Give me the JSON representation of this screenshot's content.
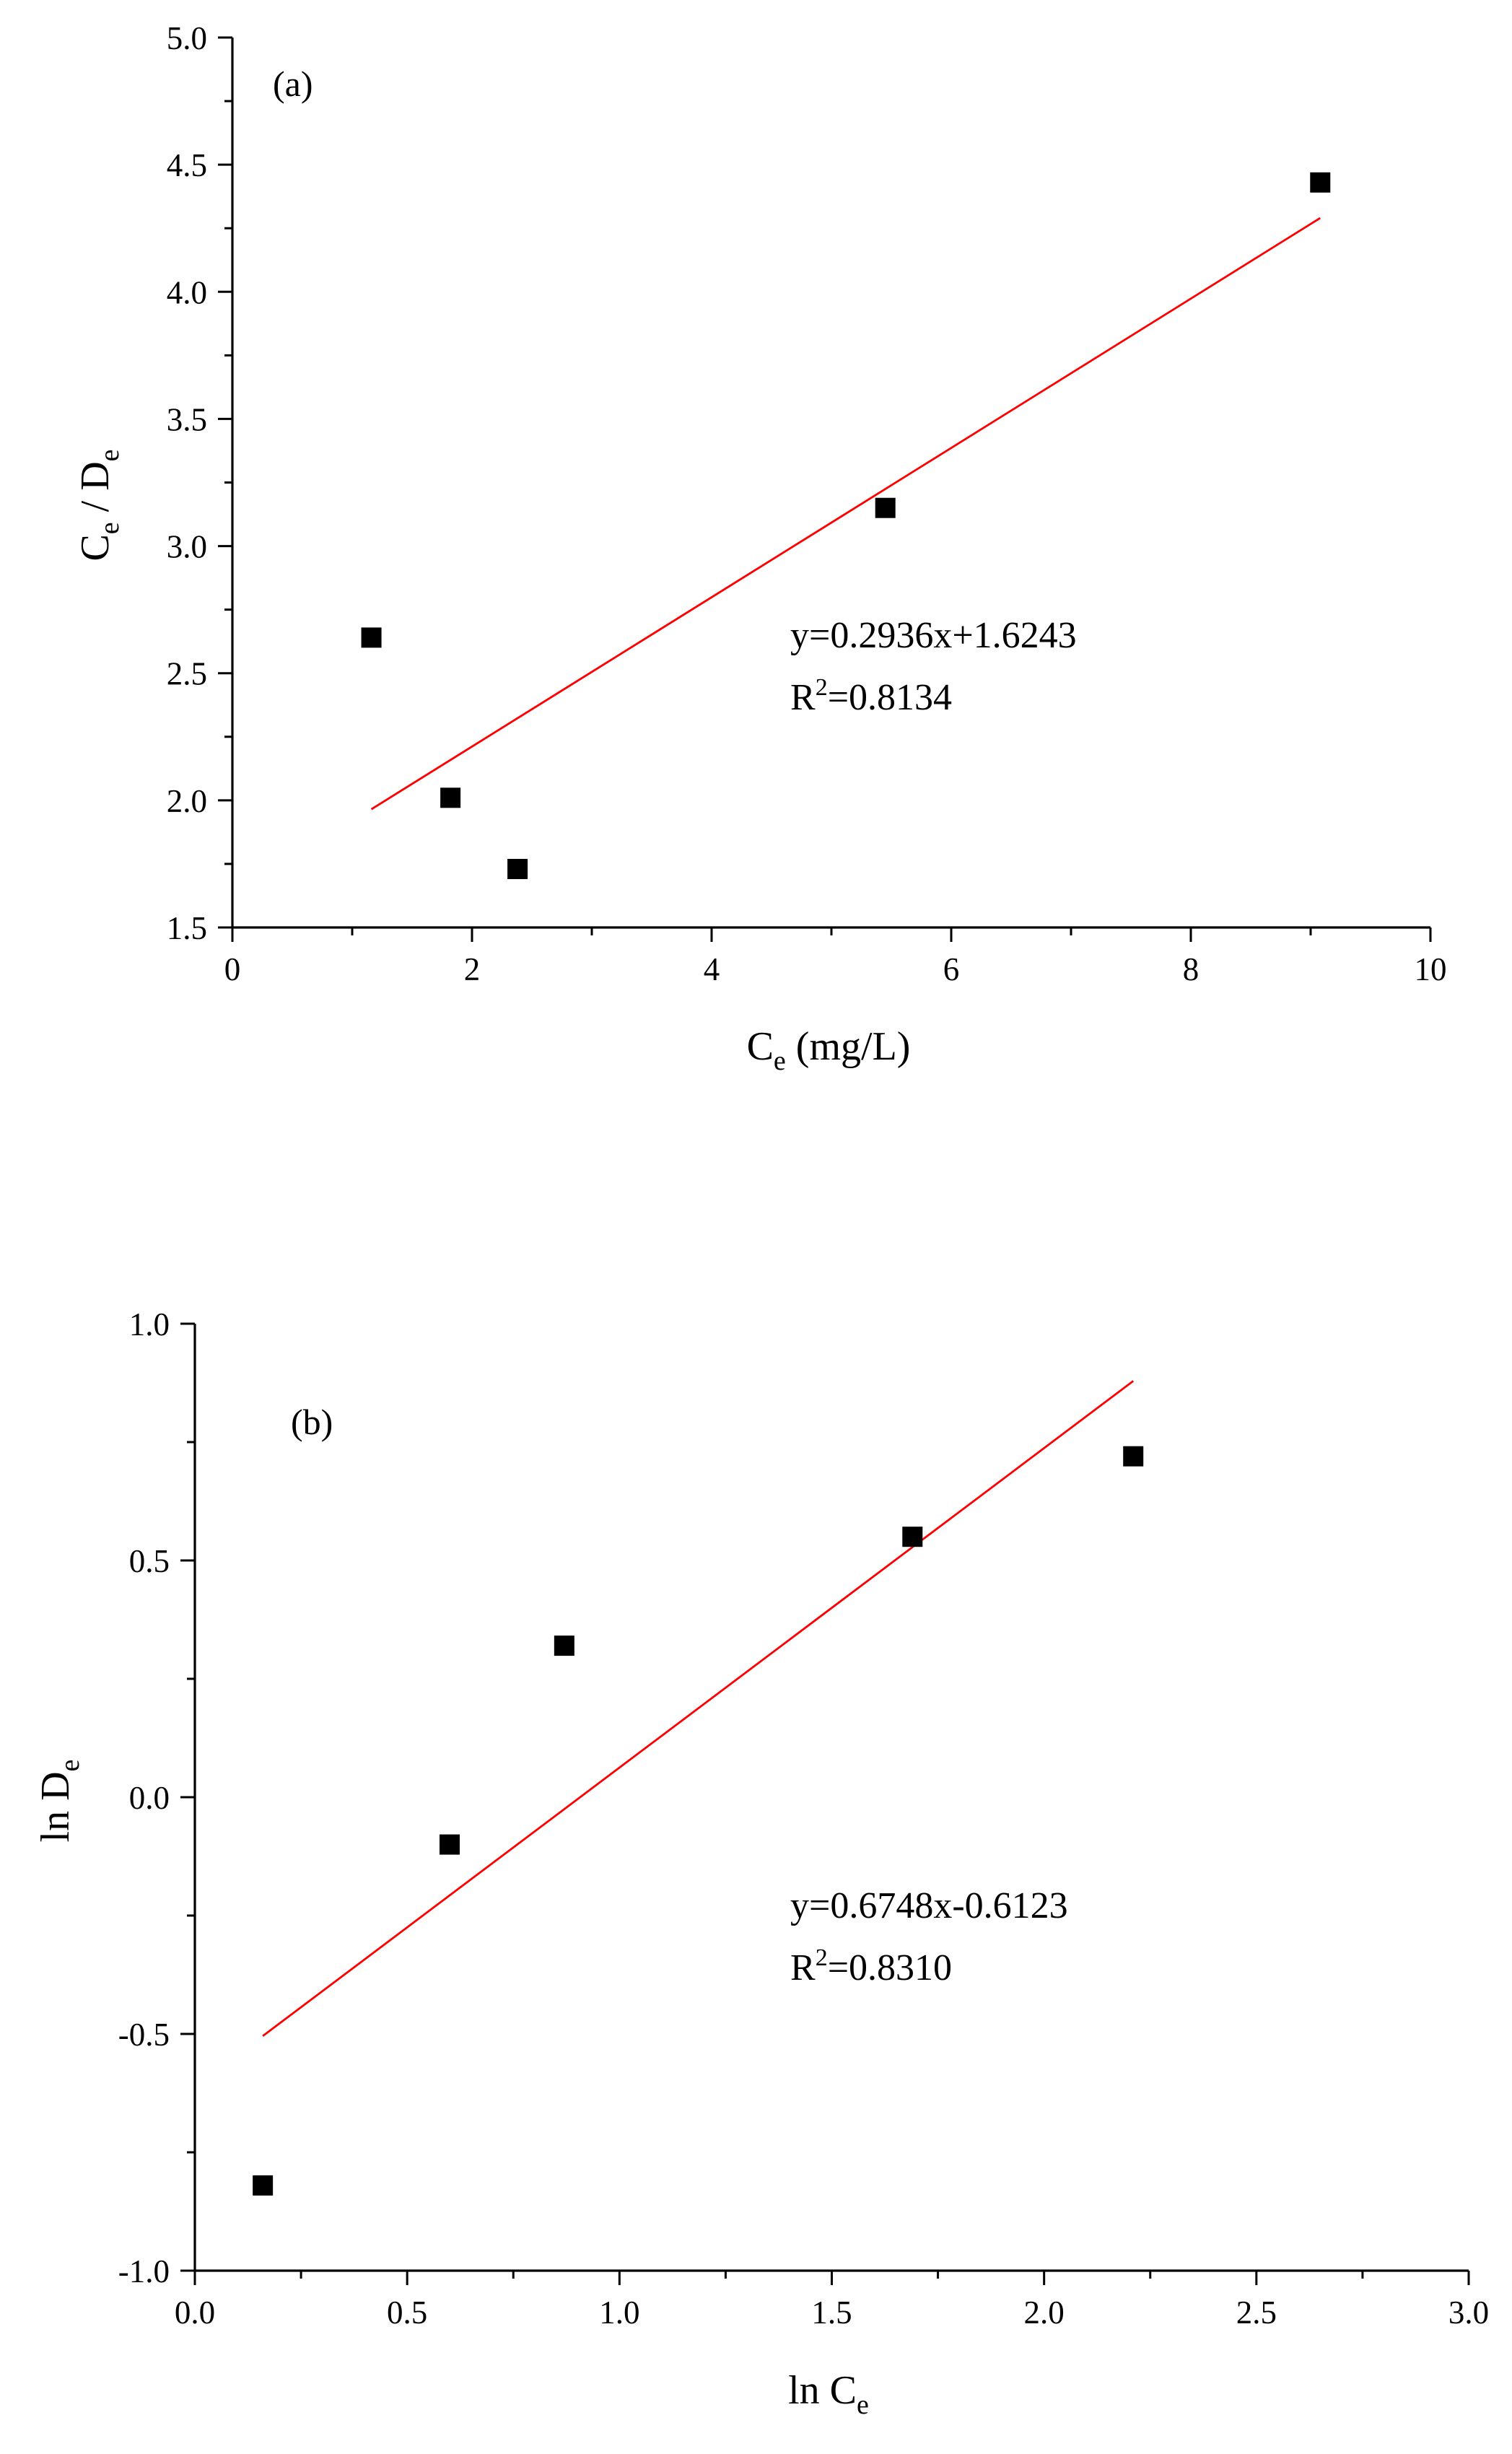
{
  "chart_data": [
    {
      "panel_label": "(a)",
      "type": "scatter",
      "xlabel_base": "C",
      "xlabel_sub": "e",
      "xlabel_unit": " (mg/L)",
      "ylabel_parts": [
        "C",
        "e",
        " / D",
        "e"
      ],
      "xlim": [
        0,
        10
      ],
      "ylim": [
        1.5,
        5.0
      ],
      "x_ticks": [
        0,
        2,
        4,
        6,
        8,
        10
      ],
      "x_tick_labels": [
        "0",
        "2",
        "4",
        "6",
        "8",
        "10"
      ],
      "x_minor_ticks": [
        1,
        3,
        5,
        7,
        9
      ],
      "y_ticks": [
        1.5,
        2.0,
        2.5,
        3.0,
        3.5,
        4.0,
        4.5,
        5.0
      ],
      "y_tick_labels": [
        "1.5",
        "2.0",
        "2.5",
        "3.0",
        "3.5",
        "4.0",
        "4.5",
        "5.0"
      ],
      "y_minor_ticks": [
        1.75,
        2.25,
        2.75,
        3.25,
        3.75,
        4.25,
        4.75
      ],
      "grid": false,
      "series": [
        {
          "points": [
            {
              "x": 1.16,
              "y": 2.64
            },
            {
              "x": 1.82,
              "y": 2.01
            },
            {
              "x": 2.38,
              "y": 1.73
            },
            {
              "x": 5.45,
              "y": 3.15
            },
            {
              "x": 9.08,
              "y": 4.43
            }
          ],
          "color": "#000000"
        }
      ],
      "fit": {
        "slope": 0.2936,
        "intercept": 1.6243,
        "x_range": [
          1.16,
          9.08
        ],
        "color": "#ff0000"
      },
      "equation": "y=0.2936x+1.6243",
      "r2_prefix": "R",
      "r2_sup": "2",
      "r2_value": "=0.8134"
    },
    {
      "panel_label": "(b)",
      "type": "scatter",
      "xlabel_base": "ln C",
      "xlabel_sub": "e",
      "xlabel_unit": "",
      "ylabel_parts": [
        "ln D",
        "e"
      ],
      "xlim": [
        0.0,
        3.0
      ],
      "ylim": [
        -1.0,
        1.0
      ],
      "x_ticks": [
        0.0,
        0.5,
        1.0,
        1.5,
        2.0,
        2.5,
        3.0
      ],
      "x_tick_labels": [
        "0.0",
        "0.5",
        "1.0",
        "1.5",
        "2.0",
        "2.5",
        "3.0"
      ],
      "x_minor_ticks": [
        0.25,
        0.75,
        1.25,
        1.75,
        2.25,
        2.75
      ],
      "y_ticks": [
        -1.0,
        -0.5,
        0.0,
        0.5,
        1.0
      ],
      "y_tick_labels": [
        "-1.0",
        "-0.5",
        "0.0",
        "0.5",
        "1.0"
      ],
      "y_minor_ticks": [
        -0.75,
        -0.25,
        0.25,
        0.75
      ],
      "grid": false,
      "series": [
        {
          "points": [
            {
              "x": 0.16,
              "y": -0.82
            },
            {
              "x": 0.6,
              "y": -0.1
            },
            {
              "x": 0.87,
              "y": 0.32
            },
            {
              "x": 1.69,
              "y": 0.55
            },
            {
              "x": 2.21,
              "y": 0.72
            }
          ],
          "color": "#000000"
        }
      ],
      "fit": {
        "slope": 0.6748,
        "intercept": -0.6123,
        "x_range": [
          0.16,
          2.21
        ],
        "color": "#ff0000"
      },
      "equation": "y=0.6748x-0.6123",
      "r2_prefix": "R",
      "r2_sup": "2",
      "r2_value": "=0.8310"
    }
  ]
}
